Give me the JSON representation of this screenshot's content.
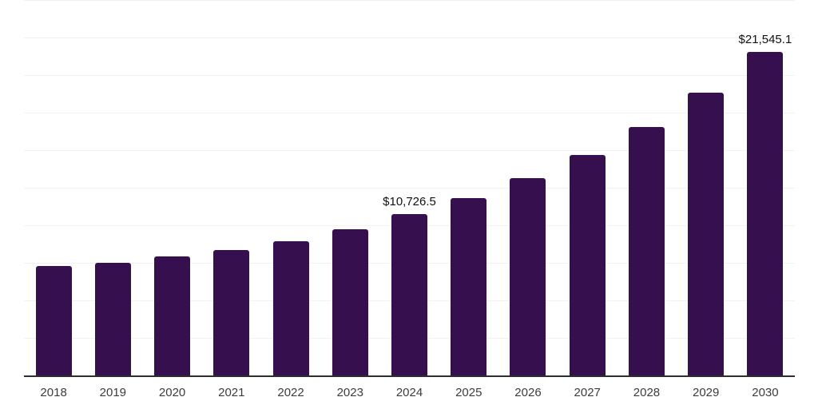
{
  "chart_data": {
    "type": "bar",
    "title": "",
    "xlabel": "",
    "ylabel": "",
    "legend": "none",
    "grid": true,
    "categories": [
      "2018",
      "2019",
      "2020",
      "2021",
      "2022",
      "2023",
      "2024",
      "2025",
      "2026",
      "2027",
      "2028",
      "2029",
      "2030"
    ],
    "values": [
      7290,
      7500,
      7900,
      8340,
      8950,
      9720,
      10726.5,
      11810,
      13120,
      14700,
      16530,
      18850,
      21545.1
    ],
    "data_labels": [
      null,
      null,
      null,
      null,
      null,
      null,
      "$10,726.5",
      null,
      null,
      null,
      null,
      null,
      "$21,545.1"
    ],
    "ylim": [
      0,
      25000
    ],
    "gridline_step": 2500,
    "colors": {
      "bar": "#36104E",
      "gridline": "#f2f2f2",
      "axis_line": "#2e2e2e",
      "tick_label": "#3c3c3c",
      "data_label": "#111111",
      "background": "#ffffff"
    }
  }
}
